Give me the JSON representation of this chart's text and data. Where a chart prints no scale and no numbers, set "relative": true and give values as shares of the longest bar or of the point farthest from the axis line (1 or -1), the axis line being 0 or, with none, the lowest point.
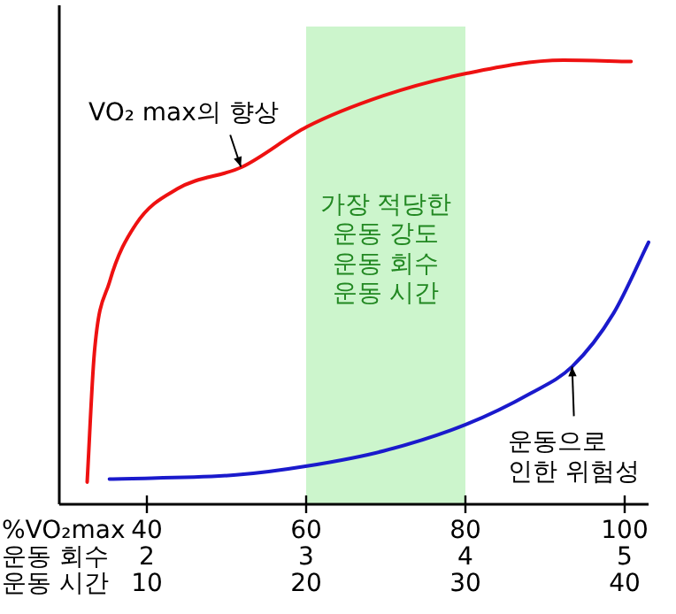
{
  "chart_data": {
    "type": "line",
    "relative": true,
    "xlabel": "%VO₂max",
    "x2label": "운동 회수",
    "xlim": [
      29,
      103
    ],
    "xticks": [
      40,
      60,
      80,
      100
    ],
    "x2lim": [
      1.45,
      5.15
    ],
    "x2ticks": [
      2,
      3,
      4,
      5
    ],
    "series": [
      {
        "color": "#ee1111",
        "x": [
          32.5,
          33.4,
          35.3,
          38.6,
          43.8,
          52,
          60.1,
          69.7,
          80.1,
          92.3,
          100.8
        ],
        "values": [
          0.05,
          0.34,
          0.5,
          0.63,
          0.71,
          0.76,
          0.85,
          0.92,
          0.97,
          1,
          0.997
        ]
      },
      {
        "color": "#1a1acc",
        "x": [
          35.3,
          51.2,
          60.1,
          69.7,
          80.1,
          88.2,
          93.4,
          98.6,
          103
        ],
        "values": [
          0.057,
          0.066,
          0.086,
          0.12,
          0.18,
          0.25,
          0.31,
          0.43,
          0.59
        ]
      }
    ],
    "bands": [
      {
        "axis": "x",
        "from": 60,
        "to": 80,
        "label": "가장 적당한\n운동 강도\n운동 회수\n운동 시간",
        "color": "#ccf5cc"
      }
    ],
    "annotations": [
      {
        "text": "VO₂ max의 향상",
        "x": 51.8,
        "y": 0.76
      },
      {
        "text": "운동으로\n인한 위험성",
        "x": 93.4,
        "y": 0.31
      },
      "운동 시간",
      "10",
      "20",
      "30",
      "40"
    ],
    "marker": "none",
    "line_style": "solid"
  }
}
